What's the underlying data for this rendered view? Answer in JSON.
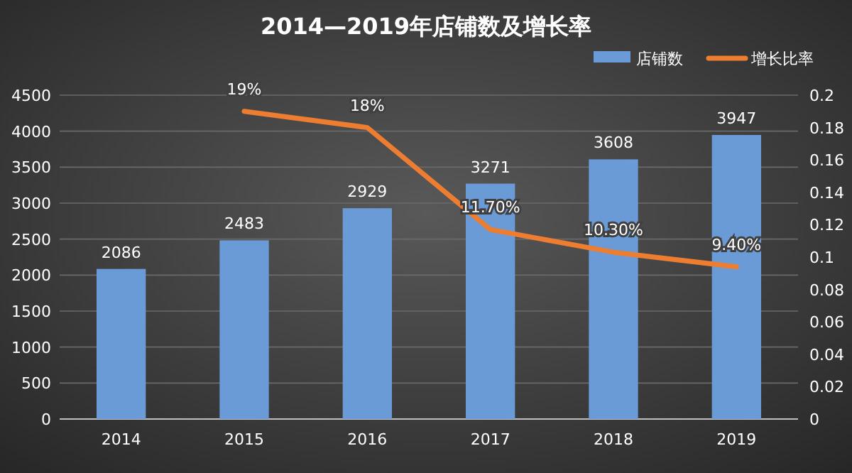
{
  "chart_data": {
    "type": "bar",
    "title": "2014—2019年店铺数及增长率",
    "categories": [
      "2014",
      "2015",
      "2016",
      "2017",
      "2018",
      "2019"
    ],
    "series": [
      {
        "name": "店铺数",
        "color": "#6b9bd6",
        "values": [
          2086,
          2483,
          2929,
          3271,
          3608,
          3947
        ],
        "value_labels": [
          "2086",
          "2483",
          "2929",
          "3271",
          "3608",
          "3947"
        ]
      },
      {
        "name": "增长比率",
        "type": "line",
        "axis": "y2",
        "color": "#ed7d31",
        "values": [
          null,
          0.19,
          0.18,
          0.117,
          0.103,
          0.094
        ],
        "value_labels": [
          null,
          "19%",
          "18%",
          "11.70%",
          "10.30%",
          "9.40%"
        ]
      }
    ],
    "ylim": [
      0,
      4500
    ],
    "yticks": [
      0,
      500,
      1000,
      1500,
      2000,
      2500,
      3000,
      3500,
      4000,
      4500
    ],
    "y2lim": [
      0,
      0.2
    ],
    "y2ticks": [
      0,
      0.02,
      0.04,
      0.06,
      0.08,
      0.1,
      0.12,
      0.14,
      0.16,
      0.18,
      0.2
    ],
    "grid": "y",
    "legend": "top right",
    "marker": "none",
    "line_style": "solid"
  }
}
